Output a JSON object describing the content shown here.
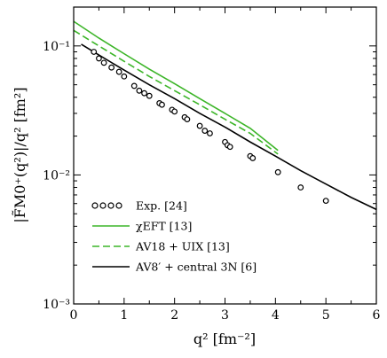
{
  "chart_data": {
    "type": "scatter",
    "title": "",
    "xlabel": "q² [fm⁻²]",
    "ylabel": "|F̃M0⁺(q²)|/q²  [fm²]",
    "xlim": [
      0,
      6
    ],
    "ylim": [
      0.001,
      0.2
    ],
    "yscale": "log",
    "x_ticks": [
      0,
      1,
      2,
      3,
      4,
      5,
      6
    ],
    "x_tick_labels": [
      "0",
      "1",
      "2",
      "3",
      "4",
      "5",
      "6"
    ],
    "y_ticks": [
      0.001,
      0.01,
      0.1
    ],
    "y_tick_labels": [
      "10⁻³",
      "10⁻²",
      "10⁻¹"
    ],
    "legend_position": "bottom-left",
    "series": [
      {
        "name": "Exp. [24]",
        "kind": "points",
        "marker": "open-circle",
        "color": "#000000",
        "x": [
          0.4,
          0.5,
          0.6,
          0.75,
          0.9,
          1.0,
          1.2,
          1.3,
          1.4,
          1.5,
          1.7,
          1.75,
          1.95,
          2.0,
          2.2,
          2.25,
          2.5,
          2.6,
          2.7,
          3.0,
          3.05,
          3.1,
          3.5,
          3.55,
          4.05,
          4.5,
          5.0
        ],
        "y": [
          0.09,
          0.08,
          0.074,
          0.068,
          0.063,
          0.058,
          0.049,
          0.045,
          0.043,
          0.041,
          0.036,
          0.035,
          0.032,
          0.031,
          0.028,
          0.027,
          0.024,
          0.022,
          0.021,
          0.018,
          0.017,
          0.0165,
          0.014,
          0.0135,
          0.0105,
          0.008,
          0.0063
        ]
      },
      {
        "name": "χEFT [13]",
        "kind": "line",
        "dash": "solid",
        "color": "#3cb528",
        "x": [
          0,
          0.5,
          1.0,
          1.5,
          2.0,
          2.5,
          3.0,
          3.5,
          4.05
        ],
        "y": [
          0.155,
          0.115,
          0.087,
          0.066,
          0.051,
          0.039,
          0.03,
          0.023,
          0.0155
        ]
      },
      {
        "name": "AV18 + UIX [13]",
        "kind": "line",
        "dash": "dashed",
        "color": "#3cb528",
        "x": [
          0,
          0.5,
          1.0,
          1.5,
          2.0,
          2.5,
          3.0,
          3.5,
          4.05
        ],
        "y": [
          0.132,
          0.1,
          0.076,
          0.058,
          0.045,
          0.035,
          0.027,
          0.021,
          0.0145
        ]
      },
      {
        "name": "AV8′ + central 3N [6]",
        "kind": "line",
        "dash": "solid",
        "color": "#000000",
        "x": [
          0.15,
          0.5,
          1.0,
          1.5,
          2.0,
          2.5,
          3.0,
          3.5,
          4.0,
          4.5,
          5.0,
          5.5,
          6.0
        ],
        "y": [
          0.103,
          0.085,
          0.065,
          0.05,
          0.039,
          0.03,
          0.0235,
          0.018,
          0.014,
          0.0108,
          0.0085,
          0.0067,
          0.0054
        ]
      }
    ]
  }
}
